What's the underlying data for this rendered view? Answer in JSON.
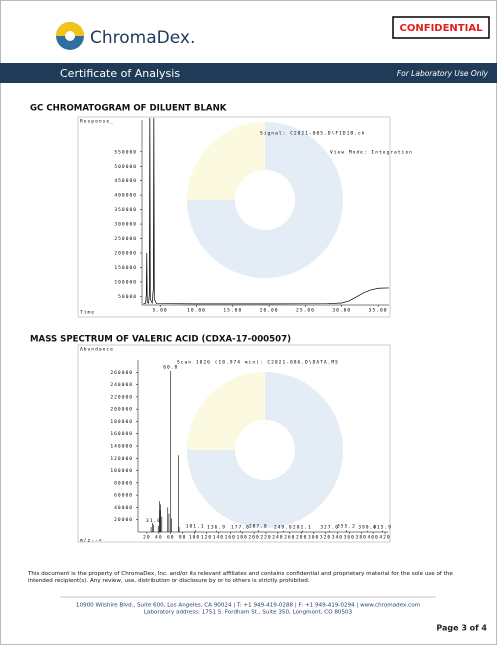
{
  "header": {
    "brand": "ChromaDex.",
    "confidential": "CONFIDENTIAL",
    "band_title": "Certificate of Analysis",
    "band_note": "For Laboratory Use Only"
  },
  "chart_data": [
    {
      "type": "line",
      "title": "GC CHROMATOGRAM OF DILUENT BLANK",
      "y_label": "Response_",
      "x_label": "Time",
      "signal": "Signal: C2021-085.D\\FID1B.ch",
      "view_mode": "View Mode: Integration",
      "color": "#000000",
      "x": [
        2.7,
        3.0,
        3.1,
        3.16,
        3.22,
        3.4,
        3.52,
        3.58,
        3.64,
        3.9,
        4.07,
        4.13,
        4.19,
        4.5,
        10,
        20,
        28,
        30,
        31,
        32,
        33,
        34,
        35,
        36.5
      ],
      "values": [
        25000,
        26000,
        60000,
        200000,
        30000,
        26000,
        60000,
        700000,
        40000,
        27000,
        80000,
        700000,
        40000,
        25000,
        24000,
        24000,
        24500,
        27000,
        34000,
        48000,
        62000,
        72000,
        78000,
        79000
      ],
      "xlim": [
        2.5,
        36.5
      ],
      "ylim": [
        20000,
        660000
      ],
      "xticks": [
        {
          "value": 5,
          "label": "5.00"
        },
        {
          "value": 10,
          "label": "10.00"
        },
        {
          "value": 15,
          "label": "15.00"
        },
        {
          "value": 20,
          "label": "20.00"
        },
        {
          "value": 25,
          "label": "25.00"
        },
        {
          "value": 30,
          "label": "30.00"
        },
        {
          "value": 35,
          "label": "35.00"
        }
      ],
      "yticks": [
        50000,
        100000,
        150000,
        200000,
        250000,
        300000,
        350000,
        400000,
        450000,
        500000,
        550000
      ]
    },
    {
      "type": "bar",
      "title": "MASS SPECTRUM OF VALERIC ACID (CDXA-17-000507)",
      "y_label": "Abundance",
      "x_label": "m/z-->",
      "scan": "Scan 1026 (10.974 min): C2021-086.D\\DATA.MS",
      "color": "#000000",
      "x": [
        27,
        29,
        31,
        39,
        41,
        42,
        43,
        45,
        55,
        57,
        60,
        61,
        73,
        74,
        101.1,
        136.9,
        177,
        207,
        249,
        281.1,
        327,
        355.2,
        390.8,
        415.9
      ],
      "values": [
        8000,
        15000,
        12000,
        10000,
        50000,
        35000,
        45000,
        25000,
        40000,
        30000,
        262000,
        22000,
        125000,
        8000,
        3000,
        2000,
        2000,
        3000,
        2000,
        2000,
        2000,
        3000,
        2000,
        2000
      ],
      "peak_labels": [
        {
          "value": 31,
          "label": "31.0"
        },
        {
          "value": 60,
          "label": "60.0"
        },
        {
          "value": 101.1,
          "label": "101.1"
        },
        {
          "value": 136.9,
          "label": "136.9"
        },
        {
          "value": 177,
          "label": "177.0"
        },
        {
          "value": 207,
          "label": "207.0"
        },
        {
          "value": 249,
          "label": "249.0"
        },
        {
          "value": 281.1,
          "label": "281.1"
        },
        {
          "value": 327,
          "label": "327.0"
        },
        {
          "value": 355.2,
          "label": "355.2"
        },
        {
          "value": 390.8,
          "label": "390.8"
        },
        {
          "value": 415.9,
          "label": "415.9"
        }
      ],
      "xlim": [
        5,
        425
      ],
      "ylim": [
        0,
        280000
      ],
      "xticks": [
        20,
        40,
        60,
        80,
        100,
        120,
        140,
        160,
        180,
        200,
        220,
        240,
        260,
        280,
        300,
        320,
        340,
        360,
        380,
        400,
        420
      ],
      "yticks": [
        20000,
        40000,
        60000,
        80000,
        100000,
        120000,
        140000,
        160000,
        180000,
        200000,
        220000,
        240000,
        260000
      ]
    }
  ],
  "footer": {
    "disclaimer": "This document is the property of ChromaDex, Inc. and/or its relevant affiliates and contains confidential and proprietary material for the sole use of the intended recipient(s).  Any review, use, distribution or disclosure by or to others is strictly prohibited.",
    "address": "10900 Wilshire Blvd., Suite 600, Los Angeles, CA 90024 | T: +1 949-419-0288 | F: +1 949-419-0294 | www.chromadex.com",
    "lab_address": "Laboratory address: 1751 S. Fordham St., Suite 350, Longmont, CO 80503",
    "page": "Page 3 of 4"
  }
}
